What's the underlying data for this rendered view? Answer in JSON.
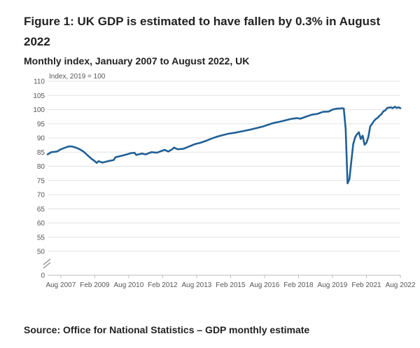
{
  "header": {
    "title": "Figure 1: UK GDP is estimated to have fallen by 0.3% in August 2022",
    "subtitle": "Monthly index, January 2007 to August 2022, UK"
  },
  "footer": {
    "source": "Source: Office for National Statistics – GDP monthly estimate"
  },
  "chart_data": {
    "type": "line",
    "ylabel": "Index, 2019 = 100",
    "y_ticks": [
      0,
      50,
      55,
      60,
      65,
      70,
      75,
      80,
      85,
      90,
      95,
      100,
      105,
      110
    ],
    "ylim": [
      50,
      110
    ],
    "axis_break": true,
    "grid": true,
    "legend": "none",
    "line_color": "#206095",
    "x_tick_labels": [
      "Aug 2007",
      "Feb 2009",
      "Aug 2010",
      "Feb 2012",
      "Aug 2013",
      "Feb 2015",
      "Aug 2016",
      "Feb 2018",
      "Aug 2019",
      "Feb 2021",
      "Aug 2022"
    ],
    "series": [
      {
        "name": "",
        "points": [
          [
            "2007-01",
            84.2
          ],
          [
            "2007-03",
            85.0
          ],
          [
            "2007-06",
            85.2
          ],
          [
            "2007-08",
            86.0
          ],
          [
            "2007-10",
            86.5
          ],
          [
            "2007-12",
            87.0
          ],
          [
            "2008-02",
            87.0
          ],
          [
            "2008-04",
            86.6
          ],
          [
            "2008-06",
            86.0
          ],
          [
            "2008-08",
            85.2
          ],
          [
            "2008-10",
            84.0
          ],
          [
            "2008-12",
            82.8
          ],
          [
            "2009-02",
            81.8
          ],
          [
            "2009-03",
            81.2
          ],
          [
            "2009-04",
            81.8
          ],
          [
            "2009-06",
            81.3
          ],
          [
            "2009-09",
            81.8
          ],
          [
            "2009-12",
            82.2
          ],
          [
            "2010-01",
            83.2
          ],
          [
            "2010-03",
            83.5
          ],
          [
            "2010-06",
            84.0
          ],
          [
            "2010-09",
            84.6
          ],
          [
            "2010-11",
            84.8
          ],
          [
            "2010-12",
            84.0
          ],
          [
            "2011-03",
            84.5
          ],
          [
            "2011-05",
            84.2
          ],
          [
            "2011-08",
            85.0
          ],
          [
            "2011-11",
            84.8
          ],
          [
            "2012-01",
            85.3
          ],
          [
            "2012-03",
            85.8
          ],
          [
            "2012-05",
            85.2
          ],
          [
            "2012-07",
            86.0
          ],
          [
            "2012-08",
            86.6
          ],
          [
            "2012-10",
            86.0
          ],
          [
            "2013-01",
            86.2
          ],
          [
            "2013-04",
            87.0
          ],
          [
            "2013-07",
            87.8
          ],
          [
            "2013-10",
            88.3
          ],
          [
            "2014-01",
            89.0
          ],
          [
            "2014-04",
            89.8
          ],
          [
            "2014-07",
            90.5
          ],
          [
            "2014-10",
            91.0
          ],
          [
            "2015-01",
            91.5
          ],
          [
            "2015-04",
            91.8
          ],
          [
            "2015-07",
            92.2
          ],
          [
            "2015-10",
            92.6
          ],
          [
            "2016-01",
            93.0
          ],
          [
            "2016-04",
            93.5
          ],
          [
            "2016-07",
            94.0
          ],
          [
            "2016-10",
            94.7
          ],
          [
            "2017-01",
            95.3
          ],
          [
            "2017-04",
            95.7
          ],
          [
            "2017-07",
            96.2
          ],
          [
            "2017-10",
            96.7
          ],
          [
            "2018-01",
            97.0
          ],
          [
            "2018-03",
            96.8
          ],
          [
            "2018-06",
            97.5
          ],
          [
            "2018-09",
            98.2
          ],
          [
            "2018-12",
            98.5
          ],
          [
            "2019-03",
            99.2
          ],
          [
            "2019-06",
            99.3
          ],
          [
            "2019-08",
            100.0
          ],
          [
            "2019-10",
            100.3
          ],
          [
            "2019-12",
            100.4
          ],
          [
            "2020-01",
            100.5
          ],
          [
            "2020-02",
            100.4
          ],
          [
            "2020-03",
            93.2
          ],
          [
            "2020-04",
            74.0
          ],
          [
            "2020-05",
            75.5
          ],
          [
            "2020-06",
            81.8
          ],
          [
            "2020-07",
            87.8
          ],
          [
            "2020-08",
            90.2
          ],
          [
            "2020-09",
            91.3
          ],
          [
            "2020-10",
            92.0
          ],
          [
            "2020-11",
            89.6
          ],
          [
            "2020-12",
            90.8
          ],
          [
            "2021-01",
            87.6
          ],
          [
            "2021-02",
            88.3
          ],
          [
            "2021-03",
            90.3
          ],
          [
            "2021-04",
            94.1
          ],
          [
            "2021-05",
            95.0
          ],
          [
            "2021-06",
            96.0
          ],
          [
            "2021-07",
            96.7
          ],
          [
            "2021-08",
            97.1
          ],
          [
            "2021-09",
            97.9
          ],
          [
            "2021-10",
            98.4
          ],
          [
            "2021-11",
            99.4
          ],
          [
            "2021-12",
            99.7
          ],
          [
            "2022-01",
            100.6
          ],
          [
            "2022-02",
            100.7
          ],
          [
            "2022-03",
            100.8
          ],
          [
            "2022-04",
            100.5
          ],
          [
            "2022-05",
            101.0
          ],
          [
            "2022-06",
            100.6
          ],
          [
            "2022-07",
            100.8
          ],
          [
            "2022-08",
            100.5
          ]
        ]
      }
    ]
  }
}
